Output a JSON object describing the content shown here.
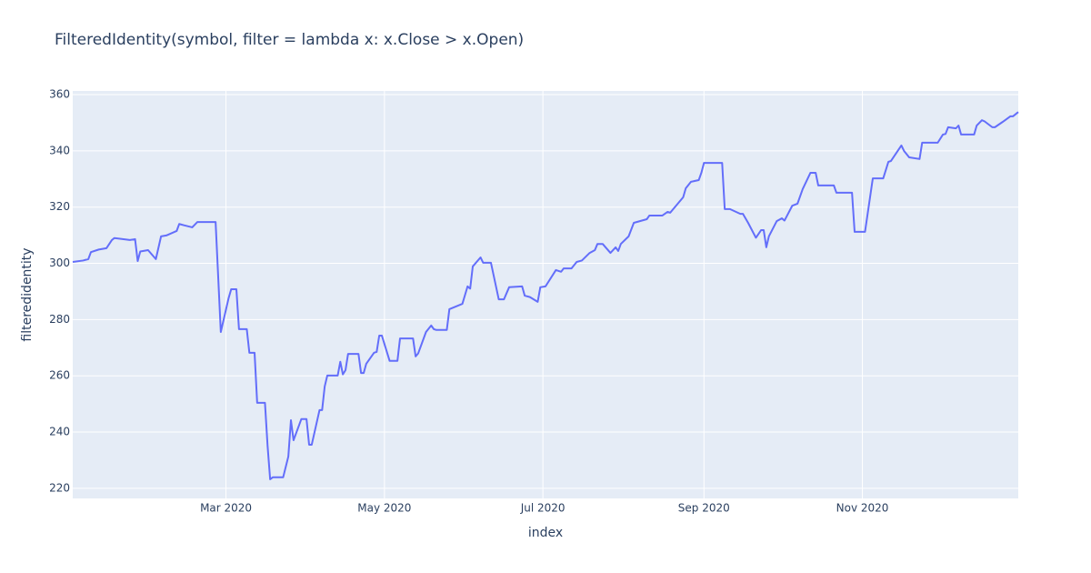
{
  "chart_data": {
    "type": "line",
    "title": "FilteredIdentity(symbol, filter = lambda x: x.Close > x.Open)",
    "x_label": "index",
    "y_label": "filteredidentity",
    "color": "#636efa",
    "grid": true,
    "xlim": [
      "2020-01-02",
      "2020-12-31"
    ],
    "xticks": [
      {
        "value": "2020-03-01",
        "label": "Mar 2020"
      },
      {
        "value": "2020-05-01",
        "label": "May 2020"
      },
      {
        "value": "2020-07-01",
        "label": "Jul 2020"
      },
      {
        "value": "2020-09-01",
        "label": "Sep 2020"
      },
      {
        "value": "2020-11-01",
        "label": "Nov 2020"
      }
    ],
    "ylim": [
      216.4,
      361.3
    ],
    "yticks": [
      220,
      240,
      260,
      280,
      300,
      320,
      340,
      360
    ],
    "x": [
      "2020-01-02",
      "2020-01-06",
      "2020-01-08",
      "2020-01-09",
      "2020-01-12",
      "2020-01-15",
      "2020-01-17",
      "2020-01-18",
      "2020-01-24",
      "2020-01-26",
      "2020-01-27",
      "2020-01-28",
      "2020-01-31",
      "2020-02-03",
      "2020-02-05",
      "2020-02-07",
      "2020-02-11",
      "2020-02-12",
      "2020-02-14",
      "2020-02-17",
      "2020-02-19",
      "2020-02-26",
      "2020-02-28",
      "2020-03-02",
      "2020-03-03",
      "2020-03-05",
      "2020-03-06",
      "2020-03-09",
      "2020-03-10",
      "2020-03-12",
      "2020-03-13",
      "2020-03-16",
      "2020-03-17",
      "2020-03-18",
      "2020-03-19",
      "2020-03-23",
      "2020-03-25",
      "2020-03-26",
      "2020-03-27",
      "2020-03-30",
      "2020-04-01",
      "2020-04-02",
      "2020-04-03",
      "2020-04-06",
      "2020-04-07",
      "2020-04-08",
      "2020-04-09",
      "2020-04-13",
      "2020-04-14",
      "2020-04-15",
      "2020-04-16",
      "2020-04-17",
      "2020-04-21",
      "2020-04-22",
      "2020-04-23",
      "2020-04-24",
      "2020-04-27",
      "2020-04-28",
      "2020-04-29",
      "2020-04-30",
      "2020-05-03",
      "2020-05-06",
      "2020-05-07",
      "2020-05-12",
      "2020-05-13",
      "2020-05-14",
      "2020-05-17",
      "2020-05-19",
      "2020-05-20",
      "2020-05-21",
      "2020-05-25",
      "2020-05-26",
      "2020-05-31",
      "2020-06-02",
      "2020-06-03",
      "2020-06-04",
      "2020-06-07",
      "2020-06-08",
      "2020-06-11",
      "2020-06-14",
      "2020-06-16",
      "2020-06-18",
      "2020-06-23",
      "2020-06-24",
      "2020-06-26",
      "2020-06-29",
      "2020-06-30",
      "2020-07-02",
      "2020-07-06",
      "2020-07-08",
      "2020-07-09",
      "2020-07-12",
      "2020-07-14",
      "2020-07-16",
      "2020-07-19",
      "2020-07-21",
      "2020-07-22",
      "2020-07-24",
      "2020-07-27",
      "2020-07-29",
      "2020-07-30",
      "2020-07-31",
      "2020-08-03",
      "2020-08-05",
      "2020-08-10",
      "2020-08-11",
      "2020-08-16",
      "2020-08-18",
      "2020-08-19",
      "2020-08-24",
      "2020-08-25",
      "2020-08-27",
      "2020-08-30",
      "2020-08-31",
      "2020-09-01",
      "2020-09-08",
      "2020-09-09",
      "2020-09-11",
      "2020-09-15",
      "2020-09-16",
      "2020-09-18",
      "2020-09-21",
      "2020-09-23",
      "2020-09-24",
      "2020-09-25",
      "2020-09-26",
      "2020-09-29",
      "2020-10-01",
      "2020-10-02",
      "2020-10-05",
      "2020-10-07",
      "2020-10-09",
      "2020-10-12",
      "2020-10-14",
      "2020-10-15",
      "2020-10-21",
      "2020-10-22",
      "2020-10-28",
      "2020-10-29",
      "2020-11-02",
      "2020-11-05",
      "2020-11-09",
      "2020-11-11",
      "2020-11-12",
      "2020-11-16",
      "2020-11-17",
      "2020-11-19",
      "2020-11-23",
      "2020-11-24",
      "2020-11-30",
      "2020-12-02",
      "2020-12-03",
      "2020-12-04",
      "2020-12-07",
      "2020-12-08",
      "2020-12-09",
      "2020-12-14",
      "2020-12-15",
      "2020-12-17",
      "2020-12-18",
      "2020-12-21",
      "2020-12-22",
      "2020-12-25",
      "2020-12-28",
      "2020-12-29",
      "2020-12-31"
    ],
    "values": [
      300.5,
      301,
      301.5,
      304,
      304.9,
      305.4,
      308.2,
      309,
      308.3,
      308.6,
      300.8,
      304.2,
      304.7,
      301.5,
      309.6,
      309.9,
      311.5,
      314,
      313.5,
      312.8,
      314.7,
      314.7,
      275.6,
      287.6,
      290.8,
      290.8,
      276.6,
      276.6,
      268.2,
      268.2,
      250.4,
      250.4,
      235.2,
      223.2,
      223.9,
      223.9,
      231.3,
      244.2,
      237.1,
      244.6,
      244.6,
      235.5,
      235.5,
      247.8,
      247.8,
      256.2,
      260.1,
      260.1,
      265,
      260.5,
      262,
      267.8,
      267.8,
      261,
      261,
      264.3,
      268.2,
      268.5,
      274.3,
      274.3,
      265.3,
      265.3,
      273.3,
      273.3,
      266.9,
      268,
      275.6,
      277.9,
      276.6,
      276.3,
      276.3,
      283.7,
      285.6,
      291.8,
      291,
      298.9,
      302.1,
      300.2,
      300.2,
      287.2,
      287.2,
      291.5,
      291.8,
      288.5,
      288,
      286.3,
      291.5,
      291.8,
      297.6,
      297,
      298.2,
      298.2,
      300.5,
      301,
      303.7,
      304.7,
      306.9,
      306.9,
      303.7,
      305.7,
      304.4,
      306.9,
      309.6,
      314.4,
      315.7,
      317,
      317,
      318.3,
      318,
      323.5,
      326.7,
      329,
      329.6,
      332.2,
      335.7,
      335.7,
      319.3,
      319.3,
      317.6,
      317.6,
      314.4,
      309.1,
      311.8,
      311.8,
      305.7,
      309.6,
      315,
      316,
      315.2,
      320.5,
      321.2,
      326.4,
      332.2,
      332.2,
      327.7,
      327.7,
      325.1,
      325.1,
      311.2,
      311.2,
      330.2,
      330.2,
      336.1,
      336.4,
      341.9,
      340,
      337.7,
      337.1,
      342.9,
      342.9,
      345.8,
      346,
      348.4,
      348,
      349,
      345.8,
      345.8,
      349,
      350.9,
      350.5,
      348.4,
      348.4,
      350.3,
      352.3,
      352.3,
      353.8
    ]
  }
}
